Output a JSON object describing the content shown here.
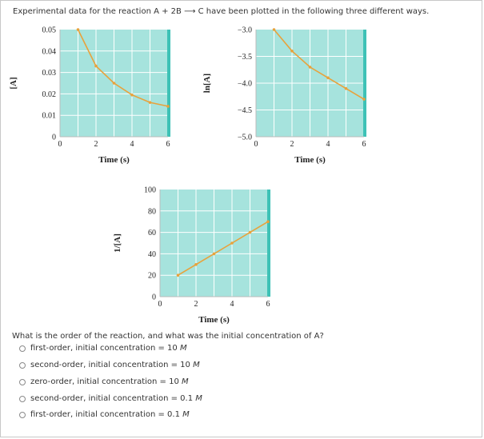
{
  "intro_text": "Experimental data for the reaction A + 2B ⟶ C have been plotted in the following three different ways.",
  "question": "What is the order of the reaction, and what was the initial concentration of A?",
  "options": [
    {
      "text": "first-order, initial concentration = 10 ",
      "unit": "M"
    },
    {
      "text": "second-order, initial concentration = 10 ",
      "unit": "M"
    },
    {
      "text": "zero-order, initial concentration = 10 ",
      "unit": "M"
    },
    {
      "text": "second-order, initial concentration = 0.1 ",
      "unit": "M"
    },
    {
      "text": "first-order, initial concentration = 0.1 ",
      "unit": "M"
    }
  ],
  "colors": {
    "panel": "#a6e3dd",
    "grid": "#ffffff",
    "line": "#e8a23c",
    "marker": "#e8a23c",
    "edge": "#3ec2b6"
  },
  "chart_data": [
    {
      "type": "line",
      "xlabel": "Time (s)",
      "ylabel": "[A]",
      "xlim": [
        0,
        6
      ],
      "ylim": [
        0,
        0.05
      ],
      "xticks": [
        "0",
        "2",
        "4",
        "6"
      ],
      "yticks": [
        "0",
        "0.01",
        "0.02",
        "0.03",
        "0.04",
        "0.05"
      ],
      "grid": true,
      "series": [
        {
          "x": [
            1,
            2,
            3,
            4,
            5,
            6
          ],
          "y": [
            0.05,
            0.033,
            0.025,
            0.0195,
            0.016,
            0.0142
          ]
        }
      ]
    },
    {
      "type": "line",
      "xlabel": "Time (s)",
      "ylabel": "ln[A]",
      "xlim": [
        0,
        6
      ],
      "ylim": [
        -5.0,
        -3.0
      ],
      "xticks": [
        "0",
        "2",
        "4",
        "6"
      ],
      "yticks": [
        "-5.0",
        "-4.5",
        "-4.0",
        "-3.5",
        "-3.0"
      ],
      "grid": true,
      "series": [
        {
          "x": [
            1,
            2,
            3,
            4,
            5,
            6
          ],
          "y": [
            -3.0,
            -3.4,
            -3.7,
            -3.9,
            -4.1,
            -4.3
          ]
        }
      ]
    },
    {
      "type": "line",
      "xlabel": "Time (s)",
      "ylabel": "1/[A]",
      "xlim": [
        0,
        6
      ],
      "ylim": [
        0,
        100
      ],
      "xticks": [
        "0",
        "2",
        "4",
        "6"
      ],
      "yticks": [
        "0",
        "20",
        "40",
        "60",
        "80",
        "100"
      ],
      "grid": true,
      "series": [
        {
          "x": [
            1,
            2,
            3,
            4,
            5,
            6
          ],
          "y": [
            20,
            30,
            40,
            50,
            60,
            70
          ]
        }
      ]
    }
  ]
}
